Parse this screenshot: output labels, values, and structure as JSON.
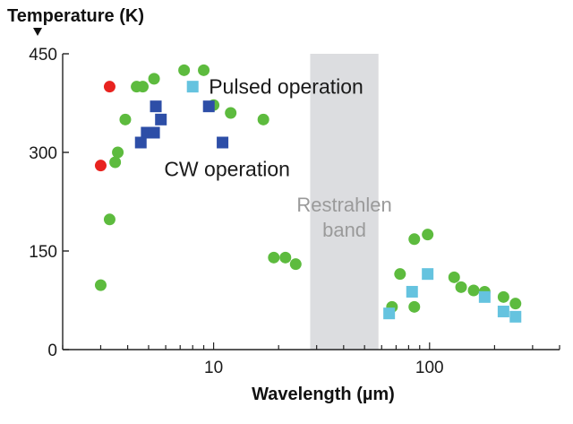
{
  "chart_data": {
    "type": "scatter",
    "xscale": "log",
    "xlim": [
      2,
      400
    ],
    "ylim": [
      0,
      450
    ],
    "xlabel": "Wavelength (µm)",
    "ylabel": "Temperature (K)",
    "xticks": [
      {
        "value": 10,
        "label": "10"
      },
      {
        "value": 100,
        "label": "100"
      }
    ],
    "yticks": [
      {
        "value": 0,
        "label": "0"
      },
      {
        "value": 150,
        "label": "150"
      },
      {
        "value": 300,
        "label": "300"
      },
      {
        "value": 450,
        "label": "450"
      }
    ],
    "band": {
      "x0": 28,
      "x1": 58,
      "label_lines": [
        "Restrahlen",
        "band"
      ],
      "color": "#dcdde0"
    },
    "annotations": [
      {
        "text": "Pulsed operation",
        "x": 9.5,
        "y": 400
      },
      {
        "text": "CW operation",
        "x": 5.9,
        "y": 275
      }
    ],
    "series": [
      {
        "marker": "circle",
        "color": "#e8231f",
        "points": [
          [
            3.0,
            280
          ],
          [
            3.3,
            400
          ]
        ]
      },
      {
        "marker": "circle",
        "color": "#5dbb3e",
        "points": [
          [
            3.0,
            98
          ],
          [
            3.3,
            198
          ],
          [
            3.5,
            285
          ],
          [
            3.6,
            300
          ],
          [
            3.9,
            350
          ],
          [
            4.4,
            400
          ],
          [
            4.7,
            400
          ],
          [
            5.3,
            412
          ],
          [
            7.3,
            425
          ],
          [
            9.0,
            425
          ],
          [
            10.0,
            372
          ],
          [
            12.0,
            360
          ],
          [
            17.0,
            350
          ],
          [
            19.0,
            140
          ],
          [
            21.5,
            140
          ],
          [
            24.0,
            130
          ],
          [
            67.0,
            65
          ],
          [
            73.0,
            115
          ],
          [
            85.0,
            168
          ],
          [
            85.0,
            65
          ],
          [
            98.0,
            175
          ],
          [
            130.0,
            110
          ],
          [
            140.0,
            95
          ],
          [
            160.0,
            90
          ],
          [
            180.0,
            88
          ],
          [
            220.0,
            80
          ],
          [
            250.0,
            70
          ]
        ]
      },
      {
        "marker": "square",
        "color": "#2d4ea7",
        "points": [
          [
            4.6,
            315
          ],
          [
            4.9,
            330
          ],
          [
            5.3,
            330
          ],
          [
            5.4,
            370
          ],
          [
            5.7,
            350
          ],
          [
            9.5,
            370
          ],
          [
            11.0,
            315
          ]
        ]
      },
      {
        "marker": "square",
        "color": "#65c3df",
        "points": [
          [
            8.0,
            400
          ],
          [
            65.0,
            55
          ],
          [
            83.0,
            88
          ],
          [
            98.0,
            115
          ],
          [
            180.0,
            80
          ],
          [
            220.0,
            58
          ],
          [
            250.0,
            50
          ]
        ]
      }
    ]
  }
}
